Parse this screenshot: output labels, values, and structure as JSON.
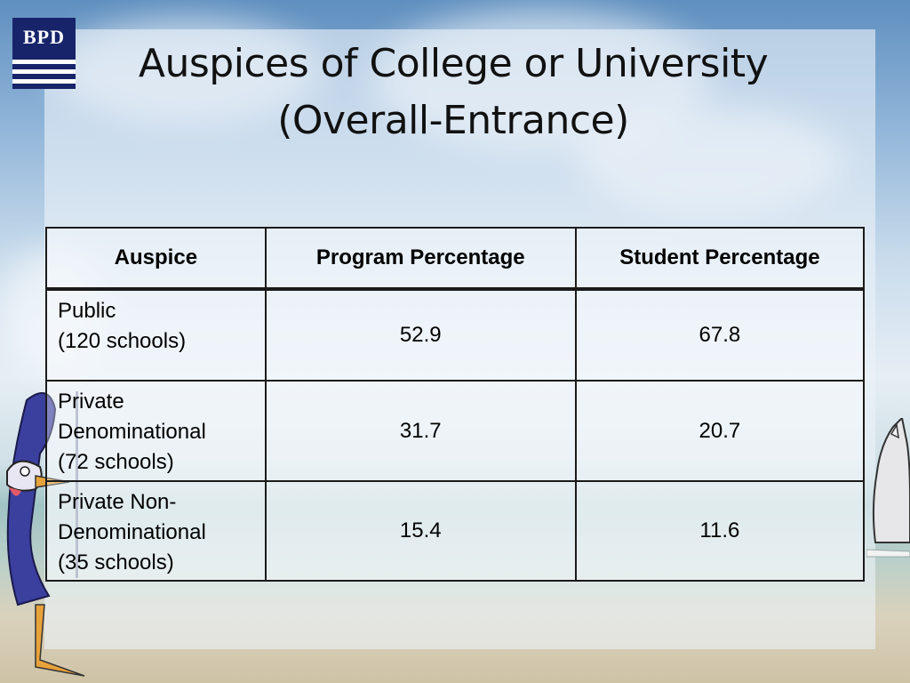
{
  "logo": {
    "text": "BPD"
  },
  "title": {
    "line1": "Auspices of College or University",
    "line2": "(Overall-Entrance)"
  },
  "table": {
    "headers": [
      "Auspice",
      "Program Percentage",
      "Student Percentage"
    ],
    "rows": [
      {
        "label_lines": [
          "Public",
          "(120 schools)"
        ],
        "program": "52.9",
        "student": "67.8"
      },
      {
        "label_lines": [
          "Private",
          "Denominational",
          "(72 schools)"
        ],
        "program": "31.7",
        "student": "20.7"
      },
      {
        "label_lines": [
          "Private Non-",
          "Denominational",
          "(35 schools)"
        ],
        "program": "15.4",
        "student": "11.6"
      }
    ]
  },
  "colors": {
    "logo_navy": "#17246a",
    "border": "#1a1a1a"
  },
  "decorations": [
    "roadrunner-cartoon",
    "rhino-cartoon",
    "beach-sky-background"
  ]
}
